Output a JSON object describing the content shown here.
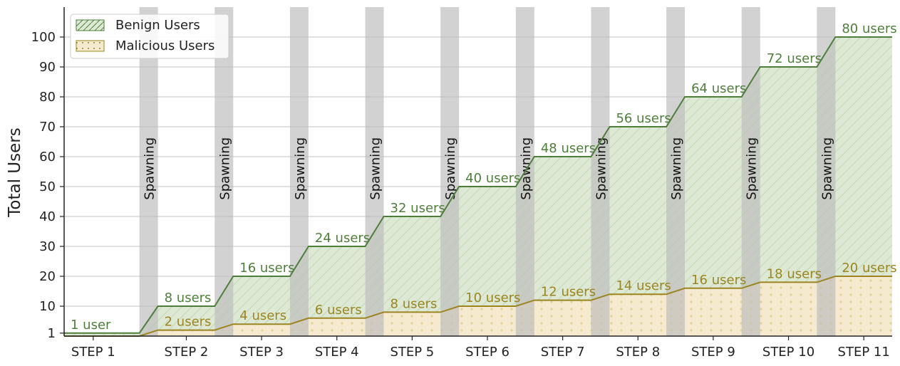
{
  "chart_data": {
    "type": "area",
    "ylabel": "Total Users",
    "categories": [
      "STEP 1",
      "STEP 2",
      "STEP 3",
      "STEP 4",
      "STEP 5",
      "STEP 6",
      "STEP 7",
      "STEP 8",
      "STEP 9",
      "STEP 10",
      "STEP 11"
    ],
    "y_ticks": [
      1,
      10,
      20,
      30,
      40,
      50,
      60,
      70,
      80,
      90,
      100
    ],
    "ylim": [
      0,
      110
    ],
    "grid": true,
    "legend_position": "top-left",
    "series": [
      {
        "name": "Benign Users",
        "values": [
          1,
          10,
          20,
          30,
          40,
          50,
          60,
          70,
          80,
          90,
          100
        ],
        "labels": [
          "1 user",
          "8 users",
          "16 users",
          "24 users",
          "32 users",
          "40 users",
          "48 users",
          "56 users",
          "64 users",
          "72 users",
          "80 users"
        ],
        "color": "#4e7f3a",
        "fill": "#dde9d4"
      },
      {
        "name": "Malicious Users",
        "values": [
          0,
          2,
          4,
          6,
          8,
          10,
          12,
          14,
          16,
          18,
          20
        ],
        "labels": [
          "",
          "2 users",
          "4 users",
          "6 users",
          "8 users",
          "10 users",
          "12 users",
          "14 users",
          "16 users",
          "18 users",
          "20 users"
        ],
        "color": "#9c8520",
        "fill": "#f5ead0"
      }
    ],
    "annotations": {
      "spawning_label": "Spawning",
      "spawning_color": "#bdbdbd"
    }
  }
}
